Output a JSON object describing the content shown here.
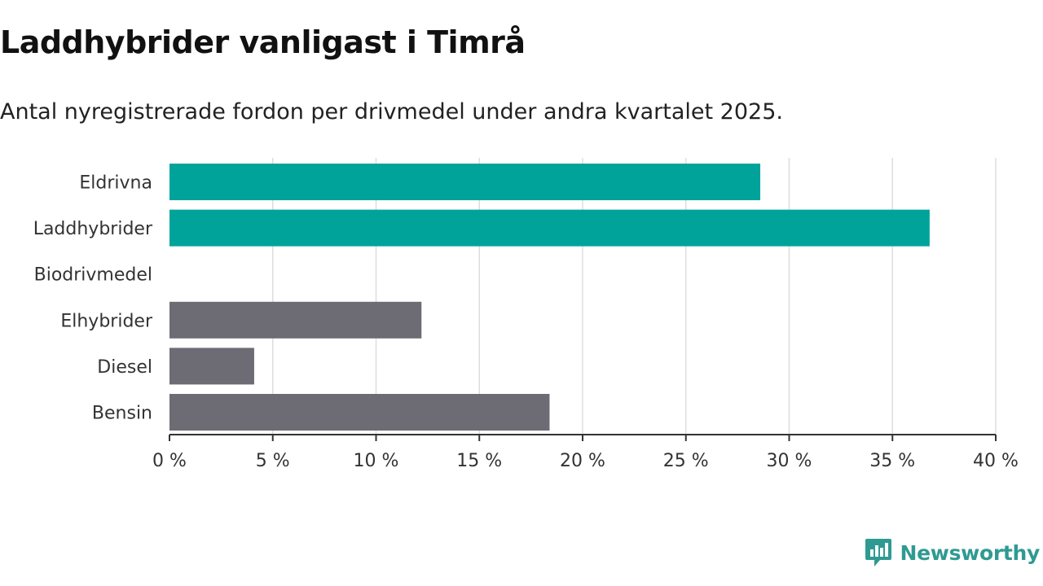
{
  "title": "Laddhybrider vanligast i Timrå",
  "subtitle": "Antal nyregistrerade fordon per drivmedel under andra kvartalet 2025.",
  "brand": {
    "name": "Newsworthy",
    "color": "#2f9a91",
    "icon": "bar-chart-logo-icon"
  },
  "colors": {
    "highlight": "#00a39a",
    "default": "#6d6c74",
    "grid": "#dddddd",
    "axis": "#333333"
  },
  "chart_data": {
    "type": "bar",
    "orientation": "horizontal",
    "categories": [
      "Eldrivna",
      "Laddhybrider",
      "Biodrivmedel",
      "Elhybrider",
      "Diesel",
      "Bensin"
    ],
    "values": [
      28.6,
      36.8,
      0,
      12.2,
      4.1,
      18.4
    ],
    "highlighted": [
      true,
      true,
      false,
      false,
      false,
      false
    ],
    "xlim": [
      0,
      40
    ],
    "ticks": [
      0,
      5,
      10,
      15,
      20,
      25,
      30,
      35,
      40
    ],
    "tick_labels": [
      "0 %",
      "5 %",
      "10 %",
      "15 %",
      "20 %",
      "25 %",
      "30 %",
      "35 %",
      "40 %"
    ],
    "unit": "%",
    "grid": true
  }
}
